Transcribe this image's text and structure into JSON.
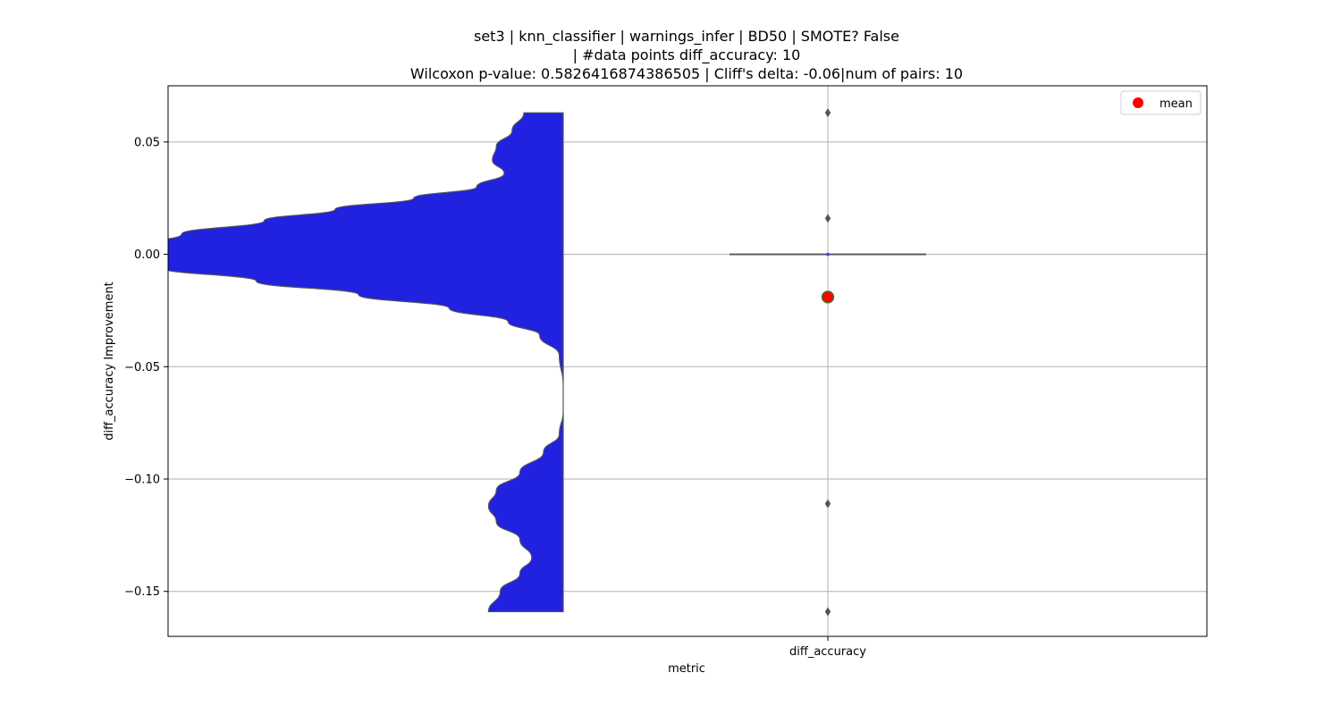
{
  "chart_data": {
    "type": "violin",
    "title_lines": [
      "set3 | knn_classifier | warnings_infer | BD50 | SMOTE? False",
      "| #data points diff_accuracy: 10",
      "Wilcoxon p-value: 0.5826416874386505 | Cliff's delta: -0.06|num of pairs: 10"
    ],
    "xlabel": "metric",
    "ylabel": "diff_accuracy Improvement",
    "categories": [
      "diff_accuracy"
    ],
    "ylim": [
      -0.17,
      0.075
    ],
    "yticks": [
      0.05,
      0.0,
      -0.05,
      -0.1,
      -0.15
    ],
    "ytick_labels": [
      "0.05",
      "0.00",
      "−0.05",
      "−0.10",
      "−0.15"
    ],
    "grid": true,
    "legend": {
      "position": "top-right",
      "entries": [
        {
          "label": "mean",
          "color": "#ff0000"
        }
      ]
    },
    "violin": {
      "color": "#2121e0",
      "edge_color": "#555555",
      "ymin": -0.159,
      "ymax": 0.063,
      "density_profile": [
        [
          0.063,
          0.1
        ],
        [
          0.055,
          0.13
        ],
        [
          0.048,
          0.17
        ],
        [
          0.042,
          0.18
        ],
        [
          0.036,
          0.15
        ],
        [
          0.03,
          0.22
        ],
        [
          0.025,
          0.38
        ],
        [
          0.02,
          0.58
        ],
        [
          0.015,
          0.76
        ],
        [
          0.009,
          0.97
        ],
        [
          0.004,
          1.07
        ],
        [
          0.0,
          1.1
        ],
        [
          -0.006,
          1.02
        ],
        [
          -0.012,
          0.78
        ],
        [
          -0.018,
          0.52
        ],
        [
          -0.024,
          0.29
        ],
        [
          -0.03,
          0.14
        ],
        [
          -0.036,
          0.06
        ],
        [
          -0.045,
          0.01
        ],
        [
          -0.058,
          0.0
        ],
        [
          -0.07,
          0.0
        ],
        [
          -0.08,
          0.01
        ],
        [
          -0.088,
          0.05
        ],
        [
          -0.097,
          0.11
        ],
        [
          -0.105,
          0.17
        ],
        [
          -0.112,
          0.19
        ],
        [
          -0.119,
          0.17
        ],
        [
          -0.127,
          0.11
        ],
        [
          -0.135,
          0.08
        ],
        [
          -0.142,
          0.11
        ],
        [
          -0.15,
          0.16
        ],
        [
          -0.159,
          0.19
        ]
      ]
    },
    "box": {
      "color": "#555555",
      "q1": 0.0,
      "median": 0.0,
      "q3": 0.0,
      "whisker_low": 0.0,
      "whisker_high": 0.0,
      "outliers": [
        0.063,
        0.016,
        -0.111,
        -0.159
      ]
    },
    "mean": {
      "value": -0.019,
      "color": "#ff0000",
      "edge_color": "#2e7d32"
    }
  }
}
